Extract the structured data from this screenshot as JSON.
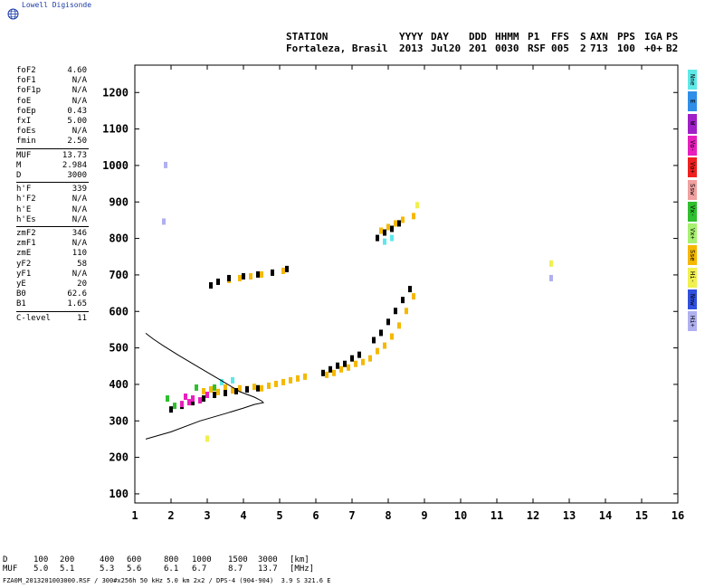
{
  "brand": "Lowell Digisonde",
  "header": {
    "line1": [
      "STATION",
      "YYYY",
      "DAY",
      "DDD",
      "HHMM",
      "P1",
      "FFS",
      "S",
      "AXN",
      "PPS",
      "IGA",
      "PS"
    ],
    "line2": [
      "Fortaleza, Brasil",
      "2013",
      "Jul20",
      "201",
      "0030",
      "RSF",
      "005",
      "2",
      "713",
      "100",
      "+0+",
      "B2"
    ]
  },
  "params": {
    "group1": [
      {
        "name": "foF2",
        "value": "4.60"
      },
      {
        "name": "foF1",
        "value": "N/A"
      },
      {
        "name": "foF1p",
        "value": "N/A"
      },
      {
        "name": "foE",
        "value": "N/A"
      },
      {
        "name": "foEp",
        "value": "0.43"
      },
      {
        "name": "fxI",
        "value": "5.00"
      },
      {
        "name": "foEs",
        "value": "N/A"
      },
      {
        "name": "fmin",
        "value": "2.50"
      }
    ],
    "group2": [
      {
        "name": "MUF",
        "value": "13.73"
      },
      {
        "name": "M",
        "value": "2.984"
      },
      {
        "name": "D",
        "value": "3000"
      }
    ],
    "group3": [
      {
        "name": "h'F",
        "value": "339"
      },
      {
        "name": "h'F2",
        "value": "N/A"
      },
      {
        "name": "h'E",
        "value": "N/A"
      },
      {
        "name": "h'Es",
        "value": "N/A"
      }
    ],
    "group4": [
      {
        "name": "zmF2",
        "value": "346"
      },
      {
        "name": "zmF1",
        "value": "N/A"
      },
      {
        "name": "zmE",
        "value": "110"
      },
      {
        "name": "yF2",
        "value": "58"
      },
      {
        "name": "yF1",
        "value": "N/A"
      },
      {
        "name": "yE",
        "value": "20"
      },
      {
        "name": "B0",
        "value": "62.6"
      },
      {
        "name": "B1",
        "value": "1.65"
      }
    ],
    "group5": [
      {
        "name": "C-level",
        "value": "11"
      }
    ]
  },
  "legend": [
    {
      "label": "Nne",
      "color": "#5ee8e8"
    },
    {
      "label": "E",
      "color": "#2f8fe8"
    },
    {
      "label": "W",
      "color": "#a020c8"
    },
    {
      "label": "Vo-",
      "color": "#e81fbd"
    },
    {
      "label": "Vo+",
      "color": "#f02020"
    },
    {
      "label": "Ssw",
      "color": "#f0a0a0"
    },
    {
      "label": "Vx-",
      "color": "#2fbf2f"
    },
    {
      "label": "Vx+",
      "color": "#a8f070"
    },
    {
      "label": "Sse",
      "color": "#f5b800"
    },
    {
      "label": "Hi-",
      "color": "#f0f050"
    },
    {
      "label": "Nnw",
      "color": "#3050e0"
    },
    {
      "label": "Hi+",
      "color": "#b0b0f0"
    }
  ],
  "bottom": {
    "d_label": "D",
    "d_values": [
      "100",
      "200",
      "400",
      "600",
      "800",
      "1000",
      "1500",
      "3000"
    ],
    "d_unit": "[km]",
    "muf_label": "MUF",
    "muf_values": [
      "5.0",
      "5.1",
      "5.3",
      "5.6",
      "6.1",
      "6.7",
      "8.7",
      "13.7"
    ],
    "muf_unit": "[MHz]"
  },
  "footer": "FZA0M_2013201003000.RSF / 300#x256h 50 kHz 5.0 km 2x2 / DPS-4 (904-904)  3.9 S 321.6 E",
  "chart_data": {
    "type": "scatter",
    "xlim": [
      1,
      16
    ],
    "ylim": [
      75,
      1275
    ],
    "x_ticks": [
      1,
      2,
      3,
      4,
      5,
      6,
      7,
      8,
      9,
      10,
      11,
      12,
      13,
      14,
      15,
      16
    ],
    "y_ticks": [
      100,
      200,
      300,
      400,
      500,
      600,
      700,
      800,
      900,
      1000,
      1100,
      1200
    ],
    "grid": false,
    "series": [
      {
        "color": "#f5b800",
        "points": [
          [
            2.9,
            380
          ],
          [
            3.1,
            385
          ],
          [
            3.3,
            378
          ],
          [
            3.5,
            390
          ],
          [
            3.7,
            382
          ],
          [
            3.9,
            388
          ],
          [
            4.1,
            386
          ],
          [
            4.3,
            392
          ],
          [
            4.5,
            388
          ],
          [
            4.7,
            395
          ],
          [
            4.9,
            400
          ],
          [
            5.1,
            405
          ],
          [
            5.3,
            410
          ],
          [
            5.5,
            415
          ],
          [
            5.7,
            420
          ],
          [
            6.3,
            425
          ],
          [
            6.5,
            430
          ],
          [
            6.7,
            440
          ],
          [
            6.9,
            445
          ],
          [
            7.1,
            455
          ],
          [
            7.3,
            460
          ],
          [
            7.5,
            470
          ],
          [
            7.7,
            490
          ],
          [
            7.9,
            505
          ],
          [
            8.1,
            530
          ],
          [
            8.3,
            560
          ],
          [
            8.5,
            600
          ],
          [
            8.7,
            640
          ],
          [
            3.6,
            685
          ],
          [
            3.9,
            690
          ],
          [
            4.2,
            695
          ],
          [
            4.5,
            700
          ],
          [
            4.8,
            705
          ],
          [
            5.1,
            710
          ],
          [
            7.8,
            820
          ],
          [
            8.0,
            830
          ],
          [
            8.2,
            840
          ],
          [
            8.4,
            850
          ],
          [
            8.7,
            860
          ]
        ]
      },
      {
        "color": "#000000",
        "points": [
          [
            2.0,
            330
          ],
          [
            2.3,
            340
          ],
          [
            2.6,
            350
          ],
          [
            2.9,
            360
          ],
          [
            3.2,
            370
          ],
          [
            3.5,
            375
          ],
          [
            3.8,
            380
          ],
          [
            4.1,
            385
          ],
          [
            4.4,
            388
          ],
          [
            6.2,
            430
          ],
          [
            6.4,
            440
          ],
          [
            6.6,
            450
          ],
          [
            6.8,
            455
          ],
          [
            7.0,
            470
          ],
          [
            7.2,
            480
          ],
          [
            7.6,
            520
          ],
          [
            7.8,
            540
          ],
          [
            8.0,
            570
          ],
          [
            8.2,
            600
          ],
          [
            8.4,
            630
          ],
          [
            8.6,
            660
          ],
          [
            3.1,
            670
          ],
          [
            3.3,
            680
          ],
          [
            3.6,
            690
          ],
          [
            4.0,
            695
          ],
          [
            4.4,
            700
          ],
          [
            4.8,
            705
          ],
          [
            5.2,
            715
          ],
          [
            7.7,
            800
          ],
          [
            7.9,
            815
          ],
          [
            8.1,
            825
          ],
          [
            8.3,
            840
          ]
        ]
      },
      {
        "color": "#e81fbd",
        "points": [
          [
            2.3,
            345
          ],
          [
            2.5,
            350
          ],
          [
            2.6,
            360
          ],
          [
            2.8,
            355
          ],
          [
            3.0,
            370
          ],
          [
            2.4,
            365
          ]
        ]
      },
      {
        "color": "#2fbf2f",
        "points": [
          [
            1.9,
            360
          ],
          [
            2.1,
            340
          ],
          [
            2.7,
            390
          ],
          [
            3.2,
            390
          ]
        ]
      },
      {
        "color": "#5ee8e8",
        "points": [
          [
            3.4,
            405
          ],
          [
            3.7,
            410
          ],
          [
            7.9,
            790
          ],
          [
            8.1,
            800
          ]
        ]
      },
      {
        "color": "#b0b0f0",
        "points": [
          [
            1.8,
            845
          ],
          [
            1.85,
            1000
          ],
          [
            12.5,
            690
          ]
        ]
      },
      {
        "color": "#f0f050",
        "points": [
          [
            3.0,
            250
          ],
          [
            8.8,
            890
          ],
          [
            12.5,
            730
          ]
        ]
      }
    ],
    "curves": [
      {
        "label": "model-profile",
        "points": [
          [
            1.3,
            250
          ],
          [
            2.0,
            270
          ],
          [
            2.8,
            300
          ],
          [
            3.5,
            320
          ],
          [
            4.0,
            335
          ],
          [
            4.3,
            345
          ],
          [
            4.55,
            350
          ],
          [
            4.5,
            355
          ],
          [
            4.3,
            365
          ],
          [
            3.9,
            380
          ],
          [
            3.4,
            410
          ],
          [
            2.8,
            445
          ],
          [
            2.2,
            480
          ],
          [
            1.8,
            505
          ],
          [
            1.5,
            525
          ],
          [
            1.3,
            540
          ]
        ]
      }
    ]
  }
}
